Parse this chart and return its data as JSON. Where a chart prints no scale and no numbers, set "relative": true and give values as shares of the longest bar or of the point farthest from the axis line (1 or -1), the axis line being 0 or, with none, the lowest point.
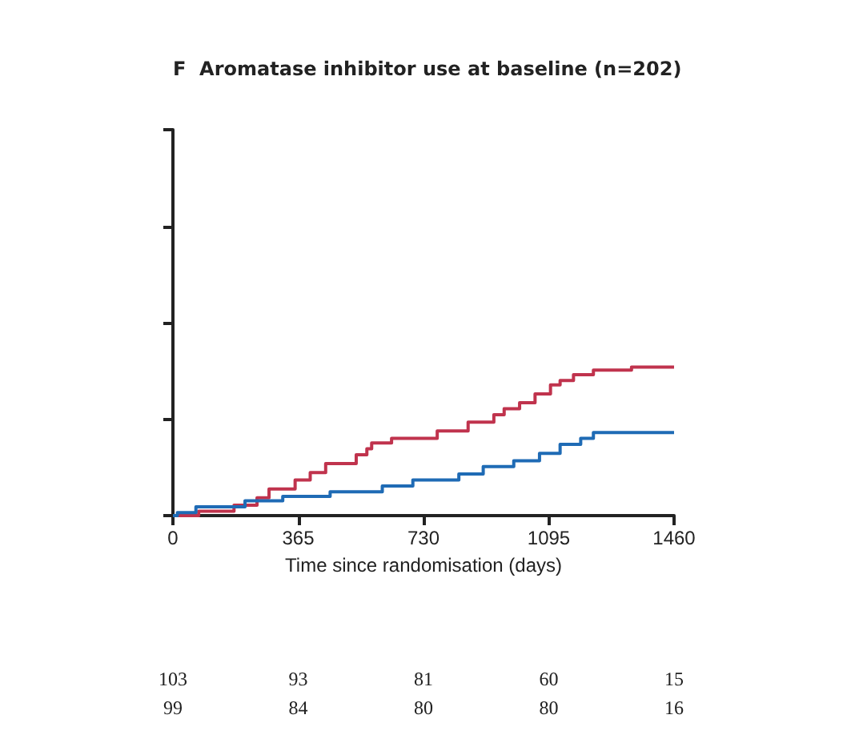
{
  "chart_data": {
    "type": "step",
    "title": "F  Aromatase inhibitor use at baseline (n=202)",
    "xlabel": "Time since randomisation (days)",
    "relative": true,
    "xlim": [
      0,
      1460
    ],
    "xticks": [
      0,
      365,
      730,
      1095,
      1460
    ],
    "grid": false,
    "marker": "none",
    "tick_labels": "x",
    "series": [
      {
        "color": "#c0334d",
        "x": [
          0,
          75,
          178,
          245,
          280,
          356,
          400,
          445,
          534,
          565,
          579,
          637,
          770,
          860,
          935,
          965,
          1010,
          1055,
          1100,
          1128,
          1167,
          1225,
          1336,
          1460
        ],
        "values": [
          0,
          0.03,
          0.07,
          0.12,
          0.18,
          0.24,
          0.29,
          0.35,
          0.41,
          0.45,
          0.49,
          0.52,
          0.57,
          0.63,
          0.68,
          0.72,
          0.76,
          0.82,
          0.88,
          0.91,
          0.95,
          0.98,
          1,
          1
        ]
      },
      {
        "color": "#1f6bb5",
        "x": [
          0,
          13,
          67,
          210,
          320,
          458,
          610,
          699,
          833,
          904,
          993,
          1068,
          1128,
          1188,
          1225,
          1460
        ],
        "values": [
          0,
          0.02,
          0.06,
          0.1,
          0.13,
          0.16,
          0.2,
          0.24,
          0.28,
          0.33,
          0.37,
          0.42,
          0.48,
          0.52,
          0.56,
          0.56
        ]
      }
    ],
    "annotations": [
      "103 93 81 60 15",
      "99 84 80 80 16"
    ]
  }
}
